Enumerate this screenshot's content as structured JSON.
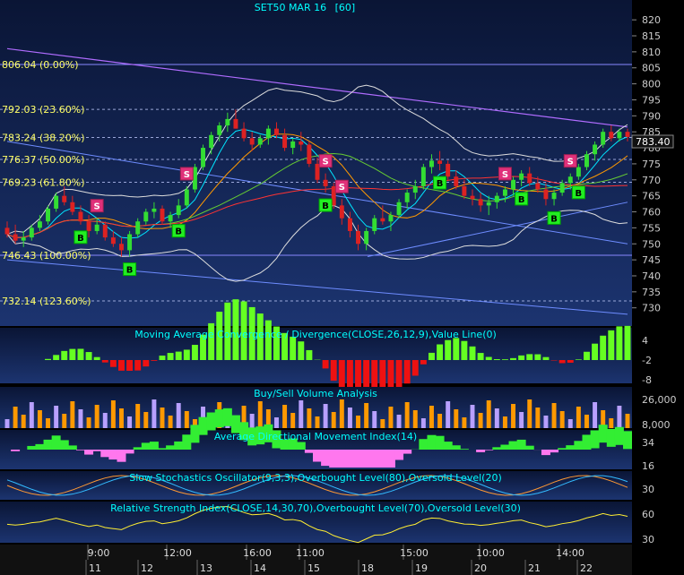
{
  "chart_data": [
    {
      "type": "candlestick",
      "title": "SET50 MAR 16",
      "interval": "[60]",
      "y_ticks": [
        820,
        815,
        810,
        805,
        800,
        795,
        790,
        785,
        780,
        775,
        770,
        765,
        760,
        755,
        750,
        745,
        740,
        735,
        730
      ],
      "ylim": [
        726,
        822
      ],
      "last_price": "783.40",
      "fib_levels": [
        {
          "label": "806.04 (0.00%)",
          "value": 806.04
        },
        {
          "label": "792.03 (23.60%)",
          "value": 792.03
        },
        {
          "label": "783.24 (38.20%)",
          "value": 783.24
        },
        {
          "label": "776.37 (50.00%)",
          "value": 776.37
        },
        {
          "label": "769.23 (61.80%)",
          "value": 769.23
        },
        {
          "label": "746.43 (100.00%)",
          "value": 746.43
        },
        {
          "label": "732.14 (123.60%)",
          "value": 732.14
        }
      ],
      "candles": [
        [
          755,
          757,
          752,
          753
        ],
        [
          753,
          756,
          750,
          751
        ],
        [
          751,
          754,
          749,
          752
        ],
        [
          752,
          756,
          751,
          755
        ],
        [
          755,
          759,
          754,
          757
        ],
        [
          757,
          762,
          756,
          761
        ],
        [
          761,
          766,
          760,
          765
        ],
        [
          765,
          768,
          762,
          763
        ],
        [
          763,
          765,
          759,
          760
        ],
        [
          760,
          762,
          756,
          757
        ],
        [
          757,
          759,
          752,
          754
        ],
        [
          754,
          758,
          753,
          756
        ],
        [
          756,
          757,
          751,
          752
        ],
        [
          752,
          754,
          749,
          750
        ],
        [
          750,
          752,
          746,
          748
        ],
        [
          748,
          754,
          746,
          753
        ],
        [
          753,
          758,
          752,
          757
        ],
        [
          757,
          761,
          756,
          760
        ],
        [
          760,
          763,
          758,
          761
        ],
        [
          761,
          762,
          756,
          757
        ],
        [
          757,
          760,
          755,
          759
        ],
        [
          759,
          764,
          758,
          762
        ],
        [
          762,
          768,
          761,
          767
        ],
        [
          767,
          775,
          766,
          774
        ],
        [
          774,
          781,
          773,
          780
        ],
        [
          780,
          785,
          778,
          784
        ],
        [
          784,
          788,
          782,
          787
        ],
        [
          787,
          791,
          785,
          789
        ],
        [
          789,
          792,
          786,
          786
        ],
        [
          786,
          788,
          782,
          783
        ],
        [
          783,
          785,
          779,
          781
        ],
        [
          781,
          784,
          780,
          783
        ],
        [
          783,
          787,
          781,
          786
        ],
        [
          786,
          788,
          783,
          784
        ],
        [
          784,
          786,
          779,
          780
        ],
        [
          780,
          783,
          778,
          782
        ],
        [
          782,
          785,
          779,
          781
        ],
        [
          781,
          782,
          774,
          775
        ],
        [
          775,
          777,
          769,
          770
        ],
        [
          770,
          772,
          766,
          768
        ],
        [
          768,
          769,
          761,
          762
        ],
        [
          762,
          764,
          756,
          758
        ],
        [
          758,
          760,
          752,
          754
        ],
        [
          754,
          756,
          748,
          750
        ],
        [
          750,
          755,
          748,
          754
        ],
        [
          754,
          759,
          753,
          758
        ],
        [
          758,
          762,
          756,
          757
        ],
        [
          757,
          760,
          754,
          759
        ],
        [
          759,
          764,
          758,
          763
        ],
        [
          763,
          767,
          761,
          766
        ],
        [
          766,
          770,
          764,
          768
        ],
        [
          768,
          775,
          767,
          774
        ],
        [
          774,
          778,
          772,
          776
        ],
        [
          776,
          779,
          773,
          775
        ],
        [
          775,
          776,
          770,
          771
        ],
        [
          771,
          773,
          767,
          768
        ],
        [
          768,
          770,
          764,
          765
        ],
        [
          765,
          767,
          762,
          764
        ],
        [
          764,
          766,
          760,
          762
        ],
        [
          762,
          765,
          759,
          763
        ],
        [
          763,
          766,
          761,
          765
        ],
        [
          765,
          768,
          763,
          767
        ],
        [
          767,
          771,
          765,
          770
        ],
        [
          770,
          773,
          768,
          772
        ],
        [
          772,
          774,
          768,
          769
        ],
        [
          769,
          771,
          766,
          767
        ],
        [
          767,
          769,
          762,
          764
        ],
        [
          764,
          767,
          762,
          766
        ],
        [
          766,
          770,
          765,
          769
        ],
        [
          769,
          772,
          767,
          771
        ],
        [
          771,
          775,
          770,
          774
        ],
        [
          774,
          779,
          773,
          778
        ],
        [
          778,
          782,
          776,
          781
        ],
        [
          781,
          786,
          780,
          785
        ],
        [
          785,
          787,
          782,
          783
        ],
        [
          783,
          786,
          782,
          785
        ],
        [
          785,
          786,
          782,
          783.4
        ]
      ],
      "buy_markers": [
        9,
        15,
        21,
        39,
        53,
        63,
        67,
        70
      ],
      "sell_markers": [
        11,
        22,
        39,
        41,
        61,
        69
      ],
      "indicators": [
        {
          "title": "Moving Average Convergence / Divergence(CLOSE,26,12,9),Value Line(0)",
          "ticks": [
            "4",
            "-2",
            "-8"
          ]
        },
        {
          "title": "Buy/Sell Volume Analysis",
          "ticks": [
            "26,000",
            "8,000"
          ]
        },
        {
          "title": "Average Directional Movement Index(14)",
          "ticks": [
            "34",
            "16"
          ]
        },
        {
          "title": "Slow Stochastics Oscillator(9,3,3),Overbought Level(80),Oversold Level(20)",
          "ticks": [
            "30"
          ]
        },
        {
          "title": "Relative Strength Index(CLOSE,14,30,70),Overbought Level(70),Oversold Level(30)",
          "ticks": [
            "60",
            "30"
          ]
        }
      ],
      "time_labels": [
        "9:00",
        "12:00",
        "16:00",
        "11:00",
        "15:00",
        "10:00",
        "14:00"
      ],
      "date_labels": [
        "11",
        "12",
        "13",
        "14",
        "15",
        "18",
        "19",
        "20",
        "21",
        "22"
      ],
      "marker_labels": {
        "buy": "B",
        "sell": "S"
      }
    }
  ],
  "colors": {
    "background": "#000000",
    "panel_top": "#1a2f5e",
    "panel_bottom": "#0a1330",
    "text_title": "#00ffff",
    "text_fib": "#ffff66",
    "up": "#33dd33",
    "down": "#dd2222"
  }
}
